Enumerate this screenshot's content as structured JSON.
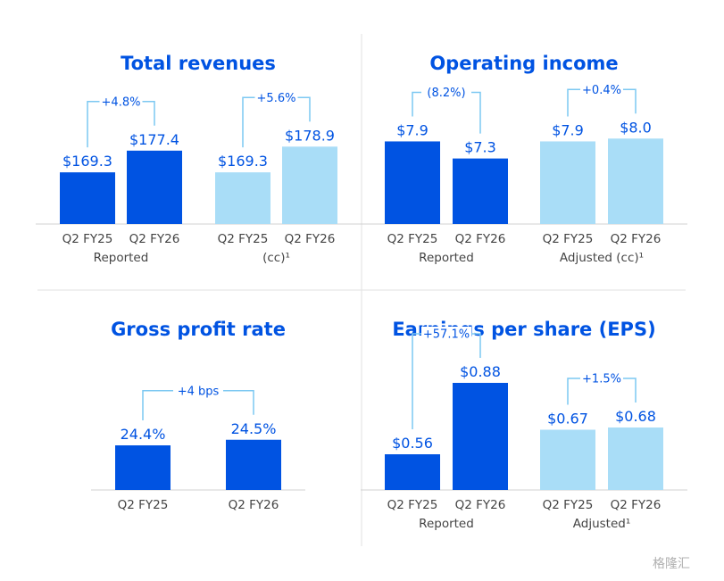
{
  "colors": {
    "dark": "#0053e2",
    "light": "#a9ddf7",
    "bracket": "#7cc8f2",
    "text": "#0053e2",
    "axis": "#d0d0d0"
  },
  "watermark": "格隆汇",
  "chart_data": [
    {
      "id": "total-revenues",
      "type": "bar",
      "title": "Total revenues",
      "ylim": [
        150,
        200
      ],
      "groups": [
        {
          "label": "Reported",
          "change": "+4.8%",
          "bars": [
            {
              "category": "Q2 FY25",
              "value": 169.3,
              "label": "$169.3",
              "shade": "dark"
            },
            {
              "category": "Q2 FY26",
              "value": 177.4,
              "label": "$177.4",
              "shade": "dark"
            }
          ]
        },
        {
          "label": "(cc)¹",
          "change": "+5.6%",
          "bars": [
            {
              "category": "Q2 FY25",
              "value": 169.3,
              "label": "$169.3",
              "shade": "light"
            },
            {
              "category": "Q2 FY26",
              "value": 178.9,
              "label": "$178.9",
              "shade": "light"
            }
          ]
        }
      ]
    },
    {
      "id": "operating-income",
      "type": "bar",
      "title": "Operating income",
      "ylim": [
        5,
        9.7
      ],
      "groups": [
        {
          "label": "Reported",
          "change": "(8.2%)",
          "bars": [
            {
              "category": "Q2 FY25",
              "value": 7.9,
              "label": "$7.9",
              "shade": "dark"
            },
            {
              "category": "Q2 FY26",
              "value": 7.3,
              "label": "$7.3",
              "shade": "dark"
            }
          ]
        },
        {
          "label": "Adjusted (cc)¹",
          "change": "+0.4%",
          "bars": [
            {
              "category": "Q2 FY25",
              "value": 7.9,
              "label": "$7.9",
              "shade": "light"
            },
            {
              "category": "Q2 FY26",
              "value": 8.0,
              "label": "$8.0",
              "shade": "light"
            }
          ]
        }
      ]
    },
    {
      "id": "gross-profit-rate",
      "type": "bar",
      "title": "Gross profit rate",
      "ylim": [
        23.6,
        26.0
      ],
      "groups": [
        {
          "label": "",
          "change": "+4 bps",
          "bars": [
            {
              "category": "Q2 FY25",
              "value": 24.4,
              "label": "24.4%",
              "shade": "dark"
            },
            {
              "category": "Q2 FY26",
              "value": 24.5,
              "label": "24.5%",
              "shade": "dark"
            }
          ]
        }
      ]
    },
    {
      "id": "earnings-per-share",
      "type": "bar",
      "title": "Earnings per share (EPS)",
      "ylim": [
        0.4,
        1.0
      ],
      "groups": [
        {
          "label": "Reported",
          "change": "+57.1%",
          "bars": [
            {
              "category": "Q2 FY25",
              "value": 0.56,
              "label": "$0.56",
              "shade": "dark"
            },
            {
              "category": "Q2 FY26",
              "value": 0.88,
              "label": "$0.88",
              "shade": "dark"
            }
          ]
        },
        {
          "label": "Adjusted¹",
          "change": "+1.5%",
          "bars": [
            {
              "category": "Q2 FY25",
              "value": 0.67,
              "label": "$0.67",
              "shade": "light"
            },
            {
              "category": "Q2 FY26",
              "value": 0.68,
              "label": "$0.68",
              "shade": "light"
            }
          ]
        }
      ]
    }
  ]
}
